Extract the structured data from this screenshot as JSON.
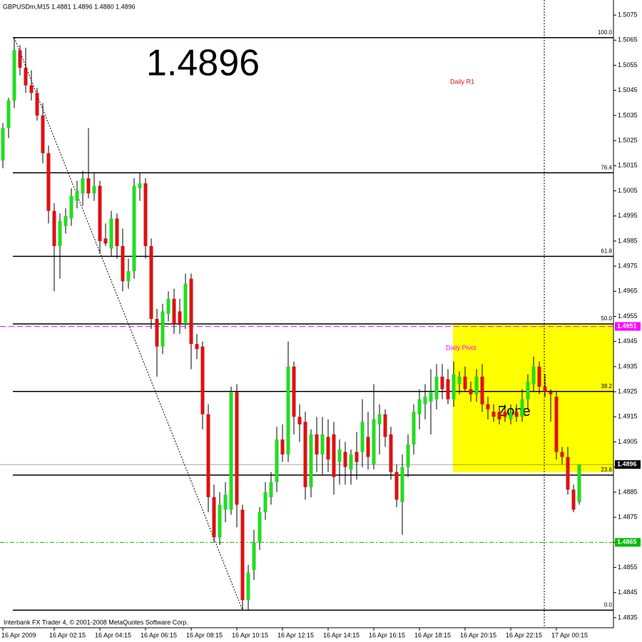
{
  "chart_data": {
    "type": "candlestick",
    "header": "GBPUSDm,M15  1.4881 1.4896 1.4880 1.4896",
    "big_label": "1.4896",
    "footer": "Interbank FX Trader 4, © 2001-2008 MetaQuotes Software Corp.",
    "annotations": [
      "Daily R1",
      "Daily Pivot"
    ],
    "bull_color": "#22dd22",
    "bear_color": "#dd1111",
    "ylim": [
      1.4831,
      1.5081
    ],
    "yticks": [
      1.5075,
      1.5065,
      1.5055,
      1.5045,
      1.5035,
      1.5025,
      1.5015,
      1.5005,
      1.4995,
      1.4985,
      1.4975,
      1.4965,
      1.4955,
      1.4945,
      1.4935,
      1.4925,
      1.4915,
      1.4905,
      1.4895,
      1.4885,
      1.4875,
      1.4865,
      1.4855,
      1.4845,
      1.4835
    ],
    "categories": [
      "16 Apr 2009",
      null,
      null,
      null,
      null,
      null,
      null,
      null,
      null,
      "16 Apr 02:15",
      null,
      null,
      null,
      null,
      null,
      null,
      null,
      "16 Apr 04:15",
      null,
      null,
      null,
      null,
      null,
      null,
      null,
      "16 Apr 06:15",
      null,
      null,
      null,
      null,
      null,
      null,
      null,
      "16 Apr 08:15",
      null,
      null,
      null,
      null,
      null,
      null,
      null,
      "16 Apr 10:15",
      null,
      null,
      null,
      null,
      null,
      null,
      null,
      "16 Apr 12:15",
      null,
      null,
      null,
      null,
      null,
      null,
      null,
      "16 Apr 14:15",
      null,
      null,
      null,
      null,
      null,
      null,
      null,
      "16 Apr 16:15",
      null,
      null,
      null,
      null,
      null,
      null,
      null,
      "16 Apr 18:15",
      null,
      null,
      null,
      null,
      null,
      null,
      null,
      "16 Apr 20:15",
      null,
      null,
      null,
      null,
      null,
      null,
      null,
      "16 Apr 22:15",
      null,
      null,
      null,
      null,
      null,
      null,
      null,
      "17 Apr 00:15",
      null,
      null,
      null,
      null
    ],
    "open": [
      1.5017,
      1.503,
      1.5041,
      1.5061,
      1.5054,
      1.5047,
      1.5044,
      1.5035,
      1.502,
      1.4997,
      1.4983,
      1.4991,
      1.4994,
      1.5001,
      1.5004,
      1.501,
      1.5004,
      1.5007,
      1.4986,
      1.4982,
      1.4994,
      1.4983,
      1.4969,
      1.4973,
      1.5006,
      1.5008,
      1.4983,
      1.4954,
      1.4943,
      1.4956,
      1.4962,
      1.4957,
      1.4952,
      1.497,
      1.4944,
      1.4943,
      1.4916,
      1.4883,
      1.4867,
      1.4878,
      1.4878,
      1.4925,
      1.4878,
      1.4842,
      1.4854,
      1.4865,
      1.4877,
      1.4883,
      1.4889,
      1.4906,
      1.49,
      1.4935,
      1.4915,
      1.4913,
      1.4887,
      1.4908,
      1.49,
      1.4907,
      1.4908,
      1.4897,
      1.4901,
      1.4894,
      1.4901,
      1.4901,
      1.4907,
      1.4896,
      1.4912,
      1.4916,
      1.4908,
      1.4893,
      1.4881,
      1.4895,
      1.4904,
      1.4916,
      1.492,
      1.4921,
      1.4922,
      1.4931,
      1.493,
      1.4922,
      1.4928,
      1.4931,
      1.4926,
      1.4924,
      1.4931,
      1.492,
      1.4917,
      1.4917,
      1.4917,
      1.4914,
      1.4917,
      1.4915,
      1.4922,
      1.4928,
      1.4935,
      1.4927,
      1.4925,
      1.4923,
      1.4901,
      1.4899,
      1.4886,
      1.4881
    ],
    "high": [
      1.5032,
      1.5042,
      1.5066,
      1.5063,
      1.5062,
      1.5053,
      1.5046,
      1.504,
      1.5023,
      1.5,
      1.4996,
      1.4998,
      1.5006,
      1.5009,
      1.5013,
      1.503,
      1.5012,
      1.5009,
      1.4992,
      1.4997,
      1.4996,
      1.499,
      1.4978,
      1.501,
      1.5012,
      1.501,
      1.4986,
      1.4958,
      1.496,
      1.4965,
      1.4966,
      1.4962,
      1.4972,
      1.4972,
      1.4948,
      1.4945,
      1.492,
      1.4888,
      1.4885,
      1.4889,
      1.4927,
      1.4928,
      1.488,
      1.4856,
      1.487,
      1.4879,
      1.4889,
      1.4893,
      1.4911,
      1.4912,
      1.4945,
      1.4937,
      1.492,
      1.4917,
      1.491,
      1.4915,
      1.4915,
      1.4914,
      1.4913,
      1.4906,
      1.4905,
      1.4902,
      1.4909,
      1.4922,
      1.4917,
      1.4928,
      1.492,
      1.4918,
      1.4911,
      1.4896,
      1.49,
      1.4908,
      1.492,
      1.4926,
      1.4928,
      1.4934,
      1.4936,
      1.4936,
      1.4934,
      1.4937,
      1.4933,
      1.4935,
      1.4929,
      1.4934,
      1.4936,
      1.4923,
      1.492,
      1.4919,
      1.492,
      1.492,
      1.492,
      1.4926,
      1.4932,
      1.4939,
      1.4937,
      1.4932,
      1.4926,
      1.4925,
      1.4903,
      1.4903,
      1.4888,
      1.4896
    ],
    "low": [
      1.5014,
      1.5026,
      1.5038,
      1.5051,
      1.5044,
      1.5041,
      1.5033,
      1.5016,
      1.4992,
      1.4965,
      1.497,
      1.4988,
      1.4991,
      1.4998,
      1.4999,
      1.5002,
      1.5001,
      1.498,
      1.4983,
      1.4979,
      1.4978,
      1.4965,
      1.4966,
      1.497,
      1.5001,
      1.4978,
      1.495,
      1.4931,
      1.494,
      1.4953,
      1.4948,
      1.4948,
      1.495,
      1.4934,
      1.4938,
      1.491,
      1.4877,
      1.4865,
      1.4864,
      1.4873,
      1.4876,
      1.4871,
      1.4838,
      1.4838,
      1.485,
      1.4862,
      1.4874,
      1.488,
      1.4885,
      1.4897,
      1.4897,
      1.4908,
      1.4905,
      1.4882,
      1.4883,
      1.4893,
      1.4892,
      1.4893,
      1.4884,
      1.4888,
      1.4888,
      1.4888,
      1.489,
      1.4895,
      1.4894,
      1.4894,
      1.49,
      1.4903,
      1.489,
      1.4879,
      1.4868,
      1.4891,
      1.49,
      1.491,
      1.4914,
      1.4908,
      1.4918,
      1.4922,
      1.492,
      1.4919,
      1.4924,
      1.4925,
      1.4921,
      1.4921,
      1.4917,
      1.4914,
      1.4913,
      1.4912,
      1.4913,
      1.4912,
      1.4913,
      1.4913,
      1.4918,
      1.4925,
      1.4924,
      1.4923,
      1.4913,
      1.4898,
      1.4896,
      1.4884,
      1.4877,
      1.488
    ],
    "close": [
      1.503,
      1.5041,
      1.5061,
      1.5054,
      1.5047,
      1.5044,
      1.5035,
      1.502,
      1.4997,
      1.4983,
      1.4993,
      1.4995,
      1.5003,
      1.5005,
      1.501,
      1.5004,
      1.5007,
      1.4985,
      1.4984,
      1.4994,
      1.4983,
      1.4969,
      1.4973,
      1.5007,
      1.5008,
      1.4983,
      1.4954,
      1.4943,
      1.4957,
      1.4962,
      1.4952,
      1.4952,
      1.4968,
      1.4944,
      1.4942,
      1.4916,
      1.4883,
      1.4867,
      1.488,
      1.4884,
      1.4925,
      1.488,
      1.4842,
      1.4853,
      1.4865,
      1.4877,
      1.4885,
      1.4889,
      1.4906,
      1.49,
      1.4935,
      1.4915,
      1.4912,
      1.4887,
      1.4908,
      1.49,
      1.4908,
      1.4898,
      1.4891,
      1.4902,
      1.4895,
      1.49,
      1.4897,
      1.4913,
      1.4899,
      1.4914,
      1.4916,
      1.4907,
      1.4893,
      1.4882,
      1.4895,
      1.4904,
      1.4917,
      1.4922,
      1.4923,
      1.4925,
      1.4931,
      1.4926,
      1.4922,
      1.4932,
      1.4931,
      1.4926,
      1.4924,
      1.4931,
      1.492,
      1.4918,
      1.4915,
      1.4914,
      1.4915,
      1.4917,
      1.4915,
      1.4922,
      1.4929,
      1.4935,
      1.4927,
      1.4925,
      1.4924,
      1.4901,
      1.4899,
      1.4886,
      1.4878,
      1.4896
    ],
    "fib_levels": [
      {
        "value": 100,
        "label": "100.0"
      },
      76.4,
      61.8,
      {
        "value": 50,
        "label": "50.0"
      },
      38.2,
      23.6,
      {
        "value": 0,
        "label": "0.0"
      }
    ],
    "price_lines": [
      {
        "value": 1.4951,
        "color": "#ff00ff",
        "style": "dashed"
      },
      {
        "value": 1.4896,
        "color": "#000000",
        "style": "solid"
      },
      {
        "value": 1.4865,
        "color": "#00bb00",
        "style": "dashdot"
      }
    ],
    "zone": {
      "label": "Zone",
      "from": 1.4952,
      "to": 1.4893,
      "color": "#ffff00"
    }
  }
}
